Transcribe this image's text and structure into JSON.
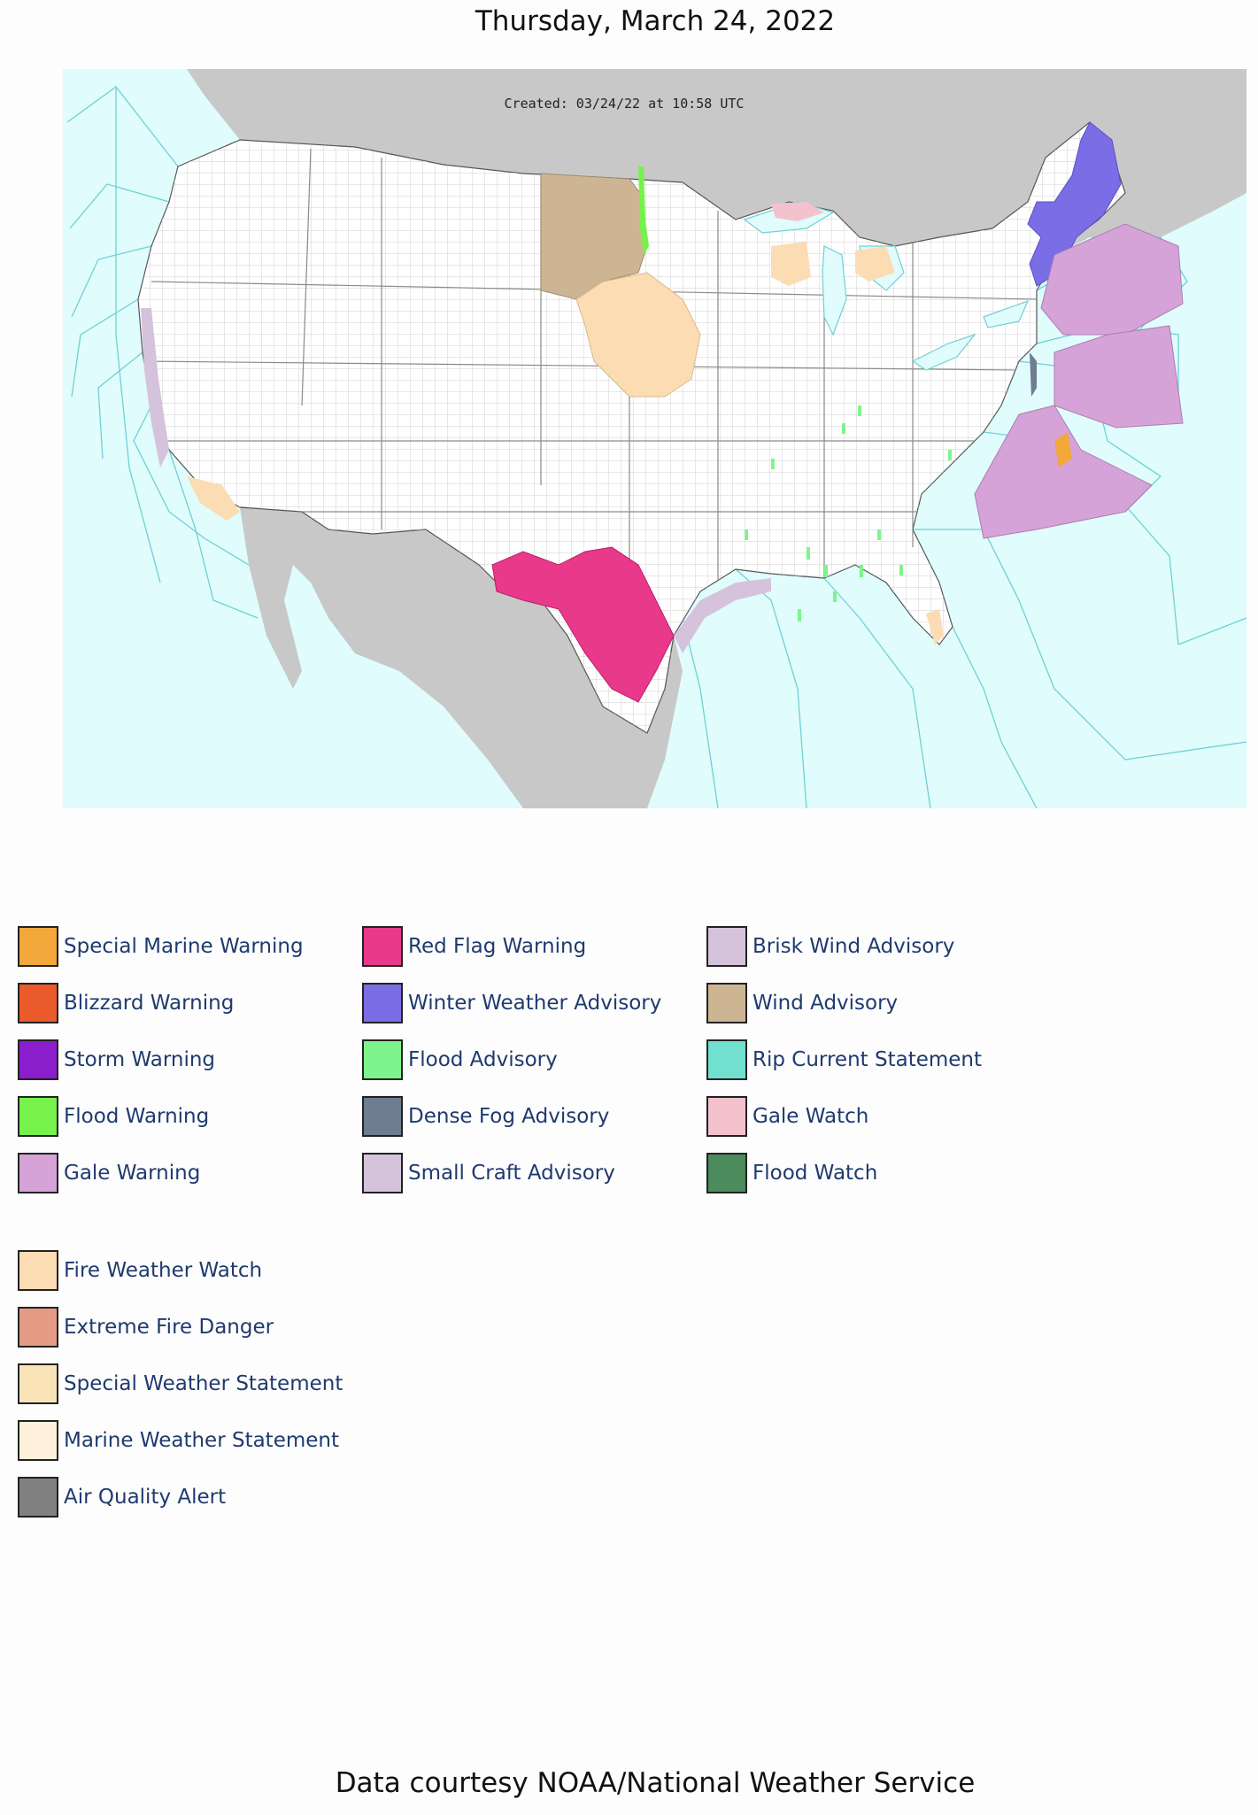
{
  "header": {
    "date": "Thursday, March 24, 2022"
  },
  "map": {
    "created_stamp": "Created: 03/24/22 at 10:58 UTC",
    "colors": {
      "ocean": "#e0fcfc",
      "foreign_land": "#c8c8c8",
      "us_land": "#ffffff",
      "county_lines": "#bdbdbd",
      "marine_zone_lines": "#6fd0d6"
    }
  },
  "legend": {
    "col1": [
      {
        "label": "Special Marine Warning",
        "color": "#f2a83b"
      },
      {
        "label": "Blizzard Warning",
        "color": "#ea5a2a"
      },
      {
        "label": "Storm Warning",
        "color": "#8a1dcc"
      },
      {
        "label": "Flood Warning",
        "color": "#76f24a"
      },
      {
        "label": "Gale Warning",
        "color": "#d6a3d9"
      }
    ],
    "col2": [
      {
        "label": "Red Flag Warning",
        "color": "#e8398a"
      },
      {
        "label": "Winter Weather Advisory",
        "color": "#7b6de6"
      },
      {
        "label": "Flood Advisory",
        "color": "#7ef58c"
      },
      {
        "label": "Dense Fog Advisory",
        "color": "#6e7d8f"
      },
      {
        "label": "Small Craft Advisory",
        "color": "#d5c3dc"
      }
    ],
    "col3": [
      {
        "label": "Brisk Wind Advisory",
        "color": "#d5c3dc"
      },
      {
        "label": "Wind Advisory",
        "color": "#cdb593"
      },
      {
        "label": "Rip Current Statement",
        "color": "#72e0cf"
      },
      {
        "label": "Gale Watch",
        "color": "#f4c2cc"
      },
      {
        "label": "Flood Watch",
        "color": "#4b8b5c"
      }
    ],
    "extra": [
      {
        "label": "Fire Weather Watch",
        "color": "#fbdcb3"
      },
      {
        "label": "Extreme Fire Danger",
        "color": "#e39c83"
      },
      {
        "label": "Special Weather Statement",
        "color": "#fbe3b8"
      },
      {
        "label": "Marine Weather Statement",
        "color": "#fdf1dc"
      },
      {
        "label": "Air Quality Alert",
        "color": "#808080"
      }
    ]
  },
  "footer": {
    "credit": "Data courtesy NOAA/National Weather Service"
  }
}
